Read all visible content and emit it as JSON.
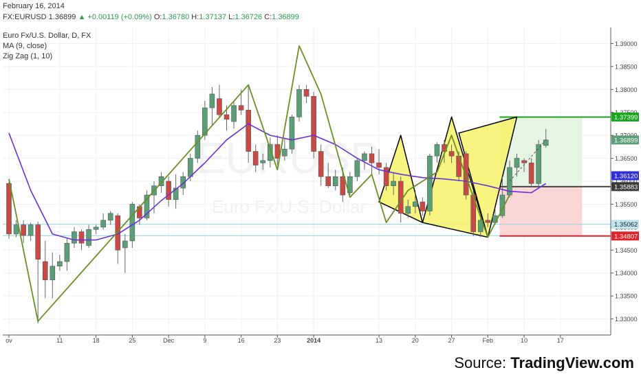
{
  "header": {
    "date": "February 16, 2014",
    "symbol": "FX:EURUSD",
    "last": "1.36899",
    "change": "+0.00119 (+0.09%)",
    "o_label": "O:",
    "o": "1.36780",
    "h_label": "H:",
    "h": "1.37137",
    "l_label": "L:",
    "l": "1.36726",
    "c_label": "C:",
    "c": "1.36899"
  },
  "legend": {
    "title": "Euro Fx/U.S. Dollar, D, FX",
    "ma": "MA (9, close)",
    "zigzag": "Zig Zag (1, 10)"
  },
  "watermark": {
    "symbol": "EURUSD",
    "sub": "Euro Fx/U.S. Dollar"
  },
  "source": {
    "prefix": "Source:",
    "brand": "TradingView.com"
  },
  "colors": {
    "up": "#5b9f78",
    "down": "#c94a45",
    "ma": "#6a2fd8",
    "zigzag": "#6a8f24",
    "pattern_fill": "#f6f26a",
    "target_green": "#19a51c",
    "stop_red": "#e0232b",
    "entry": "#444444",
    "level_blue": "#8fd1e0",
    "green_zone": "#e6f4e4",
    "red_zone": "#fad6d6"
  },
  "chart_data": {
    "type": "candlestick",
    "title": "Euro Fx/U.S. Dollar, D, FX",
    "xlabel": "",
    "ylabel": "",
    "ylim": [
      1.3265,
      1.3935
    ],
    "grid": true,
    "y_ticks": [
      1.33,
      1.335,
      1.34,
      1.345,
      1.35,
      1.355,
      1.36,
      1.365,
      1.37,
      1.375,
      1.38,
      1.385,
      1.39
    ],
    "y_tick_labels": [
      "1.33000",
      "1.33500",
      "1.34000",
      "1.34500",
      "1.35000",
      "1.35500",
      "1.36000",
      "1.36500",
      "1.37000",
      "1.37500",
      "1.38000",
      "1.38500",
      "1.39000"
    ],
    "x_ticks": [
      {
        "label": "ov",
        "i": 0
      },
      {
        "label": "11",
        "i": 7
      },
      {
        "label": "18",
        "i": 12
      },
      {
        "label": "25",
        "i": 17
      },
      {
        "label": "Dec",
        "i": 22
      },
      {
        "label": "9",
        "i": 27
      },
      {
        "label": "16",
        "i": 32
      },
      {
        "label": "23",
        "i": 37
      },
      {
        "label": "2014",
        "i": 42
      },
      {
        "label": "13",
        "i": 51
      },
      {
        "label": "20",
        "i": 56
      },
      {
        "label": "27",
        "i": 61
      },
      {
        "label": "Feb",
        "i": 66
      },
      {
        "label": "10",
        "i": 71
      },
      {
        "label": "17",
        "i": 76
      }
    ],
    "candles": [
      {
        "o": 1.3595,
        "h": 1.3598,
        "l": 1.3475,
        "c": 1.3485
      },
      {
        "o": 1.3485,
        "h": 1.3515,
        "l": 1.3478,
        "c": 1.3505
      },
      {
        "o": 1.3505,
        "h": 1.3515,
        "l": 1.3465,
        "c": 1.3482
      },
      {
        "o": 1.3482,
        "h": 1.351,
        "l": 1.347,
        "c": 1.3505
      },
      {
        "o": 1.3505,
        "h": 1.3512,
        "l": 1.329,
        "c": 1.343
      },
      {
        "o": 1.3425,
        "h": 1.347,
        "l": 1.3345,
        "c": 1.3385
      },
      {
        "o": 1.3385,
        "h": 1.3445,
        "l": 1.3345,
        "c": 1.3415
      },
      {
        "o": 1.3415,
        "h": 1.344,
        "l": 1.3405,
        "c": 1.3425
      },
      {
        "o": 1.3425,
        "h": 1.3475,
        "l": 1.3405,
        "c": 1.3465
      },
      {
        "o": 1.3465,
        "h": 1.35,
        "l": 1.3455,
        "c": 1.349
      },
      {
        "o": 1.349,
        "h": 1.3495,
        "l": 1.345,
        "c": 1.3465
      },
      {
        "o": 1.346,
        "h": 1.3505,
        "l": 1.3455,
        "c": 1.3495
      },
      {
        "o": 1.3495,
        "h": 1.3505,
        "l": 1.3485,
        "c": 1.35
      },
      {
        "o": 1.35,
        "h": 1.353,
        "l": 1.3495,
        "c": 1.3515
      },
      {
        "o": 1.3515,
        "h": 1.3535,
        "l": 1.3505,
        "c": 1.353
      },
      {
        "o": 1.3525,
        "h": 1.353,
        "l": 1.342,
        "c": 1.345
      },
      {
        "o": 1.3455,
        "h": 1.3485,
        "l": 1.34,
        "c": 1.347
      },
      {
        "o": 1.347,
        "h": 1.3555,
        "l": 1.3455,
        "c": 1.355
      },
      {
        "o": 1.3545,
        "h": 1.355,
        "l": 1.3505,
        "c": 1.352
      },
      {
        "o": 1.352,
        "h": 1.358,
        "l": 1.3515,
        "c": 1.357
      },
      {
        "o": 1.357,
        "h": 1.36,
        "l": 1.353,
        "c": 1.359
      },
      {
        "o": 1.359,
        "h": 1.362,
        "l": 1.3575,
        "c": 1.361
      },
      {
        "o": 1.36,
        "h": 1.361,
        "l": 1.3545,
        "c": 1.356
      },
      {
        "o": 1.356,
        "h": 1.3615,
        "l": 1.354,
        "c": 1.3585
      },
      {
        "o": 1.3585,
        "h": 1.362,
        "l": 1.357,
        "c": 1.361
      },
      {
        "o": 1.361,
        "h": 1.366,
        "l": 1.36,
        "c": 1.365
      },
      {
        "o": 1.365,
        "h": 1.371,
        "l": 1.364,
        "c": 1.37
      },
      {
        "o": 1.37,
        "h": 1.3775,
        "l": 1.369,
        "c": 1.376
      },
      {
        "o": 1.376,
        "h": 1.3805,
        "l": 1.372,
        "c": 1.379
      },
      {
        "o": 1.378,
        "h": 1.381,
        "l": 1.374,
        "c": 1.3745
      },
      {
        "o": 1.3745,
        "h": 1.3765,
        "l": 1.371,
        "c": 1.3735
      },
      {
        "o": 1.373,
        "h": 1.3775,
        "l": 1.3715,
        "c": 1.3765
      },
      {
        "o": 1.3765,
        "h": 1.38,
        "l": 1.3745,
        "c": 1.3755
      },
      {
        "o": 1.3755,
        "h": 1.381,
        "l": 1.364,
        "c": 1.3665
      },
      {
        "o": 1.3665,
        "h": 1.368,
        "l": 1.362,
        "c": 1.3635
      },
      {
        "o": 1.364,
        "h": 1.366,
        "l": 1.3625,
        "c": 1.3645
      },
      {
        "o": 1.3645,
        "h": 1.3695,
        "l": 1.363,
        "c": 1.368
      },
      {
        "o": 1.368,
        "h": 1.37,
        "l": 1.3635,
        "c": 1.365
      },
      {
        "o": 1.3655,
        "h": 1.3695,
        "l": 1.3645,
        "c": 1.367
      },
      {
        "o": 1.367,
        "h": 1.3745,
        "l": 1.366,
        "c": 1.374
      },
      {
        "o": 1.374,
        "h": 1.381,
        "l": 1.373,
        "c": 1.38
      },
      {
        "o": 1.38,
        "h": 1.381,
        "l": 1.377,
        "c": 1.3785
      },
      {
        "o": 1.3785,
        "h": 1.3795,
        "l": 1.365,
        "c": 1.3665
      },
      {
        "o": 1.3665,
        "h": 1.368,
        "l": 1.359,
        "c": 1.361
      },
      {
        "o": 1.361,
        "h": 1.364,
        "l": 1.3585,
        "c": 1.359
      },
      {
        "o": 1.359,
        "h": 1.3625,
        "l": 1.358,
        "c": 1.361
      },
      {
        "o": 1.361,
        "h": 1.363,
        "l": 1.3555,
        "c": 1.357
      },
      {
        "o": 1.3575,
        "h": 1.362,
        "l": 1.357,
        "c": 1.361
      },
      {
        "o": 1.361,
        "h": 1.365,
        "l": 1.36,
        "c": 1.3645
      },
      {
        "o": 1.3645,
        "h": 1.3665,
        "l": 1.3625,
        "c": 1.366
      },
      {
        "o": 1.366,
        "h": 1.3675,
        "l": 1.3615,
        "c": 1.364
      },
      {
        "o": 1.364,
        "h": 1.367,
        "l": 1.3615,
        "c": 1.363
      },
      {
        "o": 1.363,
        "h": 1.364,
        "l": 1.358,
        "c": 1.359
      },
      {
        "o": 1.359,
        "h": 1.362,
        "l": 1.357,
        "c": 1.36
      },
      {
        "o": 1.36,
        "h": 1.361,
        "l": 1.351,
        "c": 1.353
      },
      {
        "o": 1.353,
        "h": 1.356,
        "l": 1.352,
        "c": 1.3545
      },
      {
        "o": 1.3545,
        "h": 1.358,
        "l": 1.353,
        "c": 1.3555
      },
      {
        "o": 1.3555,
        "h": 1.3565,
        "l": 1.3525,
        "c": 1.3535
      },
      {
        "o": 1.3535,
        "h": 1.366,
        "l": 1.3525,
        "c": 1.3655
      },
      {
        "o": 1.3655,
        "h": 1.3685,
        "l": 1.364,
        "c": 1.368
      },
      {
        "o": 1.368,
        "h": 1.369,
        "l": 1.364,
        "c": 1.3665
      },
      {
        "o": 1.3665,
        "h": 1.368,
        "l": 1.364,
        "c": 1.3655
      },
      {
        "o": 1.3655,
        "h": 1.3665,
        "l": 1.36,
        "c": 1.361
      },
      {
        "o": 1.366,
        "h": 1.3665,
        "l": 1.356,
        "c": 1.357
      },
      {
        "o": 1.357,
        "h": 1.358,
        "l": 1.348,
        "c": 1.349
      },
      {
        "o": 1.349,
        "h": 1.353,
        "l": 1.3478,
        "c": 1.3515
      },
      {
        "o": 1.3515,
        "h": 1.353,
        "l": 1.35,
        "c": 1.351
      },
      {
        "o": 1.351,
        "h": 1.354,
        "l": 1.3505,
        "c": 1.3525
      },
      {
        "o": 1.3525,
        "h": 1.361,
        "l": 1.352,
        "c": 1.357
      },
      {
        "o": 1.357,
        "h": 1.3645,
        "l": 1.3565,
        "c": 1.363
      },
      {
        "o": 1.363,
        "h": 1.366,
        "l": 1.361,
        "c": 1.365
      },
      {
        "o": 1.3645,
        "h": 1.365,
        "l": 1.362,
        "c": 1.364
      },
      {
        "o": 1.364,
        "h": 1.365,
        "l": 1.359,
        "c": 1.3595
      },
      {
        "o": 1.3595,
        "h": 1.369,
        "l": 1.3585,
        "c": 1.368
      },
      {
        "o": 1.3678,
        "h": 1.3714,
        "l": 1.3673,
        "c": 1.369
      }
    ],
    "series": [
      {
        "name": "MA (9, close)",
        "x": [
          0,
          3,
          6,
          9,
          12,
          15,
          18,
          21,
          24,
          27,
          30,
          33,
          36,
          39,
          42,
          45,
          48,
          51,
          54,
          57,
          60,
          63,
          66,
          69,
          72,
          74
        ],
        "y": [
          1.3705,
          1.358,
          1.3485,
          1.3472,
          1.3472,
          1.3485,
          1.3515,
          1.3558,
          1.3595,
          1.364,
          1.369,
          1.3725,
          1.37,
          1.369,
          1.37,
          1.368,
          1.365,
          1.3625,
          1.3615,
          1.3608,
          1.3605,
          1.36,
          1.359,
          1.3578,
          1.3575,
          1.3595
        ]
      },
      {
        "name": "Zig Zag (1, 10)",
        "x": [
          0,
          4,
          33,
          37,
          40,
          43,
          47,
          50,
          52,
          55,
          59,
          61,
          63,
          66,
          69
        ],
        "y": [
          1.3605,
          1.3295,
          1.381,
          1.3625,
          1.3895,
          1.379,
          1.3565,
          1.3615,
          1.351,
          1.358,
          1.362,
          1.37,
          1.361,
          1.3478,
          1.357
        ]
      }
    ],
    "levels": [
      {
        "name": "target",
        "value": 1.37399,
        "label": "1.37399"
      },
      {
        "name": "entry",
        "value": 1.35883,
        "label": "1.35883"
      },
      {
        "name": "stop",
        "value": 1.34807,
        "label": "1.34807"
      },
      {
        "name": "support",
        "value": 1.35062,
        "label": "1.35062"
      },
      {
        "name": "ma_marker",
        "value": 1.3612,
        "label": "1.36120"
      },
      {
        "name": "price",
        "value": 1.36899,
        "label": "1.36899"
      }
    ],
    "patterns": [
      {
        "points": [
          [
            51,
            1.3555
          ],
          [
            54,
            1.37
          ],
          [
            57,
            1.351
          ]
        ]
      },
      {
        "points": [
          [
            57,
            1.351
          ],
          [
            61,
            1.374
          ],
          [
            66,
            1.3478
          ]
        ]
      },
      {
        "points": [
          [
            62,
            1.3705
          ],
          [
            70,
            1.374
          ],
          [
            66,
            1.3478
          ]
        ]
      }
    ],
    "trade_zone": {
      "start_i": 68,
      "end_i": 79,
      "entry": 1.35883,
      "target": 1.37399,
      "stop": 1.34807
    },
    "trend_line": {
      "from": [
        69,
        1.36
      ],
      "to": [
        74,
        1.369
      ]
    }
  }
}
